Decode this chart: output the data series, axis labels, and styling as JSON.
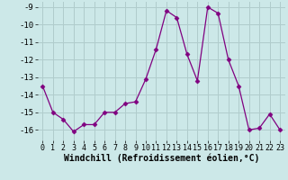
{
  "x": [
    0,
    1,
    2,
    3,
    4,
    5,
    6,
    7,
    8,
    9,
    10,
    11,
    12,
    13,
    14,
    15,
    16,
    17,
    18,
    19,
    20,
    21,
    22,
    23
  ],
  "y": [
    -13.5,
    -15.0,
    -15.4,
    -16.1,
    -15.7,
    -15.7,
    -15.0,
    -15.0,
    -14.5,
    -14.4,
    -13.1,
    -11.4,
    -9.2,
    -9.6,
    -11.7,
    -13.2,
    -9.0,
    -9.35,
    -12.0,
    -13.5,
    -16.0,
    -15.9,
    -15.1,
    -16.0
  ],
  "line_color": "#800080",
  "marker": "D",
  "markersize": 2.5,
  "linewidth": 0.9,
  "xlabel": "Windchill (Refroidissement éolien,°C)",
  "xlabel_fontsize": 7,
  "ylabel": "",
  "ylim": [
    -16.6,
    -8.7
  ],
  "xlim": [
    -0.5,
    23.5
  ],
  "yticks": [
    -16,
    -15,
    -14,
    -13,
    -12,
    -11,
    -10,
    -9
  ],
  "xtick_labels": [
    "0",
    "1",
    "2",
    "3",
    "4",
    "5",
    "6",
    "7",
    "8",
    "9",
    "10",
    "11",
    "12",
    "13",
    "14",
    "15",
    "16",
    "17",
    "18",
    "19",
    "20",
    "21",
    "22",
    "23"
  ],
  "background_color": "#cce8e8",
  "grid_color": "#b0cccc",
  "tick_fontsize": 6,
  "ytick_fontsize": 6.5
}
